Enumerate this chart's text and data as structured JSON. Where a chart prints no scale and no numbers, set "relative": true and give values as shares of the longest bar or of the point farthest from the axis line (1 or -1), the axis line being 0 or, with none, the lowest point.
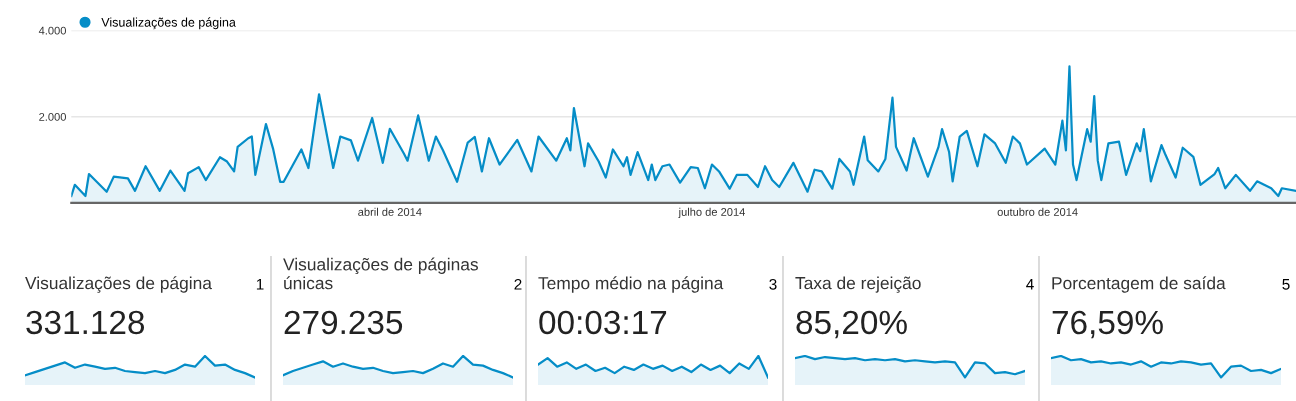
{
  "chart_data": [
    {
      "type": "area",
      "legend": "top left",
      "grid": "y",
      "marker": "none",
      "xlim": [
        "2014-01-01",
        "2014-12-13"
      ],
      "ylim": [
        0,
        4000
      ],
      "yticks": [
        {
          "value": 2000,
          "label": "2.000"
        },
        {
          "value": 4000,
          "label": "4.000"
        }
      ],
      "xticks": [
        {
          "value": "2014-04-01",
          "label": "abril de 2014"
        },
        {
          "value": "2014-07-01",
          "label": "julho de 2014"
        },
        {
          "value": "2014-10-01",
          "label": "outubro de 2014"
        }
      ],
      "series": [
        {
          "name": "Visualizações de página",
          "color": "#058dc7",
          "x": [
            "2014-01-01",
            "2014-01-02",
            "2014-01-05",
            "2014-01-06",
            "2014-01-11",
            "2014-01-13",
            "2014-01-17",
            "2014-01-19",
            "2014-01-22",
            "2014-01-26",
            "2014-01-29",
            "2014-02-02",
            "2014-02-03",
            "2014-02-06",
            "2014-02-08",
            "2014-02-12",
            "2014-02-14",
            "2014-02-16",
            "2014-02-17",
            "2014-02-20",
            "2014-02-21",
            "2014-02-22",
            "2014-02-25",
            "2014-02-27",
            "2014-03-01",
            "2014-03-02",
            "2014-03-07",
            "2014-03-09",
            "2014-03-12",
            "2014-03-16",
            "2014-03-18",
            "2014-03-21",
            "2014-03-23",
            "2014-03-27",
            "2014-03-30",
            "2014-04-01",
            "2014-04-05",
            "2014-04-06",
            "2014-04-09",
            "2014-04-12",
            "2014-04-14",
            "2014-04-16",
            "2014-04-20",
            "2014-04-23",
            "2014-04-25",
            "2014-04-27",
            "2014-04-29",
            "2014-05-02",
            "2014-05-07",
            "2014-05-11",
            "2014-05-13",
            "2014-05-18",
            "2014-05-21",
            "2014-05-22",
            "2014-05-23",
            "2014-05-26",
            "2014-05-27",
            "2014-05-30",
            "2014-06-01",
            "2014-06-03",
            "2014-06-06",
            "2014-06-07",
            "2014-06-08",
            "2014-06-10",
            "2014-06-13",
            "2014-06-14",
            "2014-06-15",
            "2014-06-17",
            "2014-06-19",
            "2014-06-22",
            "2014-06-25",
            "2014-06-27",
            "2014-06-29",
            "2014-07-01",
            "2014-07-03",
            "2014-07-06",
            "2014-07-08",
            "2014-07-11",
            "2014-07-14",
            "2014-07-16",
            "2014-07-18",
            "2014-07-20",
            "2014-07-24",
            "2014-07-28",
            "2014-07-30",
            "2014-08-01",
            "2014-08-04",
            "2014-08-06",
            "2014-08-09",
            "2014-08-10",
            "2014-08-13",
            "2014-08-14",
            "2014-08-17",
            "2014-08-19",
            "2014-08-21",
            "2014-08-22",
            "2014-08-25",
            "2014-08-27",
            "2014-08-31",
            "2014-09-03",
            "2014-09-04",
            "2014-09-06",
            "2014-09-07",
            "2014-09-09",
            "2014-09-11",
            "2014-09-14",
            "2014-09-16",
            "2014-09-19",
            "2014-09-22",
            "2014-09-24",
            "2014-09-26",
            "2014-09-28",
            "2014-10-03",
            "2014-10-06",
            "2014-10-08",
            "2014-10-09",
            "2014-10-10",
            "2014-10-11",
            "2014-10-12",
            "2014-10-15",
            "2014-10-16",
            "2014-10-17",
            "2014-10-18",
            "2014-10-19",
            "2014-10-21",
            "2014-10-24",
            "2014-10-26",
            "2014-10-29",
            "2014-10-30",
            "2014-10-31",
            "2014-11-02",
            "2014-11-05",
            "2014-11-06",
            "2014-11-09",
            "2014-11-11",
            "2014-11-14",
            "2014-11-16",
            "2014-11-20",
            "2014-11-21",
            "2014-11-23",
            "2014-11-26",
            "2014-11-30",
            "2014-12-02",
            "2014-12-06",
            "2014-12-08",
            "2014-12-09",
            "2014-12-13"
          ],
          "values": [
            160,
            420,
            160,
            670,
            260,
            610,
            570,
            280,
            850,
            280,
            750,
            280,
            690,
            830,
            530,
            1060,
            960,
            730,
            1300,
            1500,
            1540,
            650,
            1830,
            1260,
            490,
            490,
            1240,
            810,
            2520,
            810,
            1540,
            1450,
            980,
            1970,
            930,
            1720,
            1140,
            980,
            2030,
            980,
            1540,
            1220,
            490,
            1400,
            1530,
            730,
            1500,
            890,
            1460,
            730,
            1540,
            980,
            1500,
            1220,
            2200,
            850,
            1380,
            960,
            590,
            1240,
            850,
            1060,
            650,
            1180,
            530,
            890,
            530,
            850,
            890,
            470,
            830,
            810,
            340,
            890,
            730,
            330,
            650,
            650,
            370,
            850,
            530,
            370,
            930,
            260,
            770,
            730,
            330,
            1020,
            730,
            420,
            1540,
            990,
            730,
            1020,
            2440,
            1300,
            750,
            1500,
            610,
            1300,
            1710,
            1180,
            500,
            1540,
            1670,
            850,
            1590,
            1380,
            930,
            1540,
            1380,
            890,
            1260,
            890,
            1910,
            1220,
            3170,
            890,
            530,
            1710,
            1420,
            2480,
            980,
            530,
            1380,
            1420,
            650,
            1380,
            1200,
            1710,
            500,
            1340,
            1140,
            590,
            1280,
            1070,
            420,
            670,
            810,
            340,
            650,
            280,
            500,
            340,
            160,
            340,
            280
          ]
        }
      ]
    },
    {
      "type": "area",
      "relative": true,
      "title": "Visualizações de página",
      "annotations": [
        "331.128",
        "1"
      ],
      "categories": [
        null,
        null,
        null,
        null,
        null,
        null,
        null,
        null,
        null,
        null,
        null,
        null,
        null,
        null,
        null,
        null,
        null,
        null,
        null,
        null,
        null,
        null,
        null,
        null
      ],
      "series": [
        {
          "color": "#058dc7",
          "values": [
            0.1,
            0.25,
            0.4,
            0.55,
            0.7,
            0.45,
            0.6,
            0.5,
            0.4,
            0.45,
            0.3,
            0.25,
            0.2,
            0.3,
            0.2,
            0.35,
            0.6,
            0.5,
            1.0,
            0.55,
            0.6,
            0.35,
            0.2,
            0.0
          ]
        }
      ]
    },
    {
      "type": "area",
      "relative": true,
      "title": "Visualizações de páginas únicas",
      "annotations": [
        "279.235",
        "2"
      ],
      "categories": [
        null,
        null,
        null,
        null,
        null,
        null,
        null,
        null,
        null,
        null,
        null,
        null,
        null,
        null,
        null,
        null,
        null,
        null,
        null,
        null,
        null,
        null,
        null,
        null
      ],
      "series": [
        {
          "color": "#058dc7",
          "values": [
            0.1,
            0.3,
            0.45,
            0.6,
            0.75,
            0.5,
            0.65,
            0.5,
            0.4,
            0.45,
            0.3,
            0.2,
            0.25,
            0.3,
            0.2,
            0.4,
            0.65,
            0.5,
            1.0,
            0.6,
            0.55,
            0.35,
            0.2,
            0.0
          ]
        }
      ]
    },
    {
      "type": "area",
      "relative": true,
      "title": "Tempo médio na página",
      "annotations": [
        "00:03:17",
        "3"
      ],
      "categories": [
        null,
        null,
        null,
        null,
        null,
        null,
        null,
        null,
        null,
        null,
        null,
        null,
        null,
        null,
        null,
        null,
        null,
        null,
        null,
        null,
        null,
        null,
        null,
        null,
        null
      ],
      "series": [
        {
          "color": "#058dc7",
          "values": [
            0.6,
            0.9,
            0.5,
            0.7,
            0.4,
            0.6,
            0.3,
            0.45,
            0.2,
            0.5,
            0.35,
            0.6,
            0.4,
            0.55,
            0.3,
            0.5,
            0.25,
            0.6,
            0.35,
            0.55,
            0.2,
            0.65,
            0.4,
            1.0,
            0.0
          ]
        }
      ]
    },
    {
      "type": "area",
      "relative": true,
      "title": "Taxa de rejeição",
      "annotations": [
        "85,20%",
        "4"
      ],
      "categories": [
        null,
        null,
        null,
        null,
        null,
        null,
        null,
        null,
        null,
        null,
        null,
        null,
        null,
        null,
        null,
        null,
        null,
        null,
        null,
        null,
        null,
        null,
        null,
        null
      ],
      "series": [
        {
          "color": "#058dc7",
          "values": [
            0.9,
            1.0,
            0.85,
            0.95,
            0.9,
            0.85,
            0.9,
            0.8,
            0.85,
            0.8,
            0.85,
            0.75,
            0.8,
            0.75,
            0.7,
            0.75,
            0.7,
            0.0,
            0.7,
            0.65,
            0.2,
            0.25,
            0.15,
            0.3
          ]
        }
      ]
    },
    {
      "type": "area",
      "relative": true,
      "title": "Porcentagem de saída",
      "annotations": [
        "76,59%",
        "5"
      ],
      "categories": [
        null,
        null,
        null,
        null,
        null,
        null,
        null,
        null,
        null,
        null,
        null,
        null,
        null,
        null,
        null,
        null,
        null,
        null,
        null,
        null,
        null,
        null,
        null,
        null
      ],
      "series": [
        {
          "color": "#058dc7",
          "values": [
            0.9,
            1.0,
            0.8,
            0.85,
            0.7,
            0.75,
            0.65,
            0.7,
            0.6,
            0.75,
            0.5,
            0.7,
            0.65,
            0.75,
            0.7,
            0.6,
            0.65,
            0.0,
            0.5,
            0.55,
            0.3,
            0.35,
            0.2,
            0.4
          ]
        }
      ]
    }
  ]
}
